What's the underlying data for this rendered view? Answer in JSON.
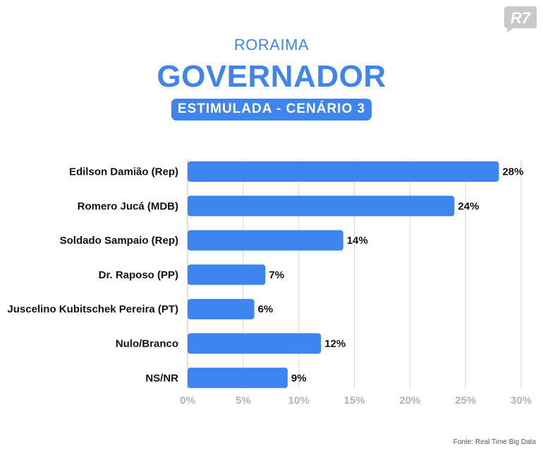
{
  "header": {
    "state": "RORAIMA",
    "title": "GOVERNADOR",
    "scenario": "ESTIMULADA - CENÁRIO 3"
  },
  "logo": {
    "text": "R7",
    "color": "#c9c9c9"
  },
  "source": "Fonte: Real Time Big Data",
  "colors": {
    "accent": "#3f85ef",
    "bar": "#3f85ef",
    "grid": "#d6d6d6",
    "tick": "#b3b3b3"
  },
  "chart_data": {
    "type": "bar",
    "orientation": "horizontal",
    "categories": [
      "Edilson Damião (Rep)",
      "Romero Jucá (MDB)",
      "Soldado Sampaio (Rep)",
      "Dr. Raposo (PP)",
      "Juscelino Kubitschek Pereira (PT)",
      "Nulo/Branco",
      "NS/NR"
    ],
    "values": [
      28,
      24,
      14,
      7,
      6,
      12,
      9
    ],
    "value_labels": [
      "28%",
      "24%",
      "14%",
      "7%",
      "6%",
      "12%",
      "9%"
    ],
    "xlim": [
      0,
      30
    ],
    "xticks": [
      0,
      5,
      10,
      15,
      20,
      25,
      30
    ],
    "xtick_labels": [
      "0%",
      "5%",
      "10%",
      "15%",
      "20%",
      "25%",
      "30%"
    ],
    "grid": true,
    "title": "GOVERNADOR",
    "xlabel": "",
    "ylabel": ""
  }
}
